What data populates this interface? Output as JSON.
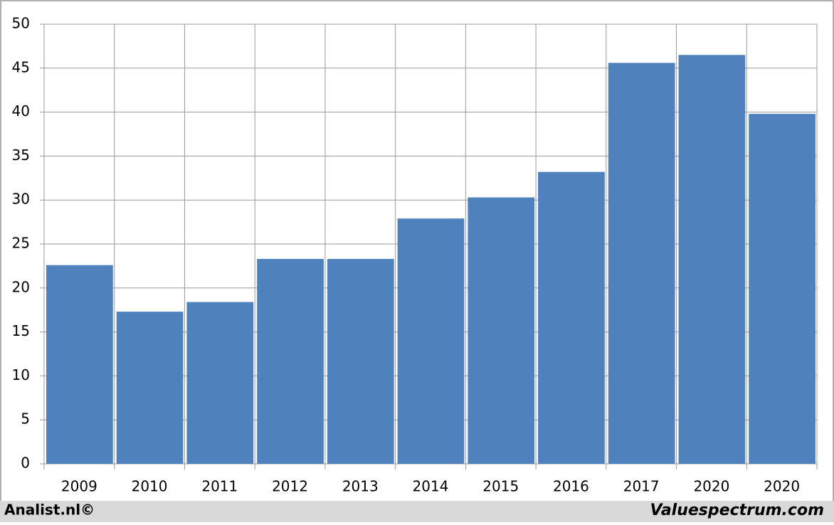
{
  "chart_data": {
    "type": "bar",
    "categories": [
      "2009",
      "2010",
      "2011",
      "2012",
      "2013",
      "2014",
      "2015",
      "2016",
      "2017",
      "2020",
      "2020"
    ],
    "values": [
      22.6,
      17.3,
      18.4,
      23.3,
      23.3,
      27.9,
      30.3,
      33.2,
      45.6,
      46.5,
      39.8
    ],
    "color": "#4f81bd",
    "ylim": [
      0,
      50
    ],
    "yticks": [
      0,
      5,
      10,
      15,
      20,
      25,
      30,
      35,
      40,
      45,
      50
    ],
    "grid": true
  },
  "footer": {
    "left": "Analist.nl©",
    "right": "Valuespectrum.com"
  }
}
